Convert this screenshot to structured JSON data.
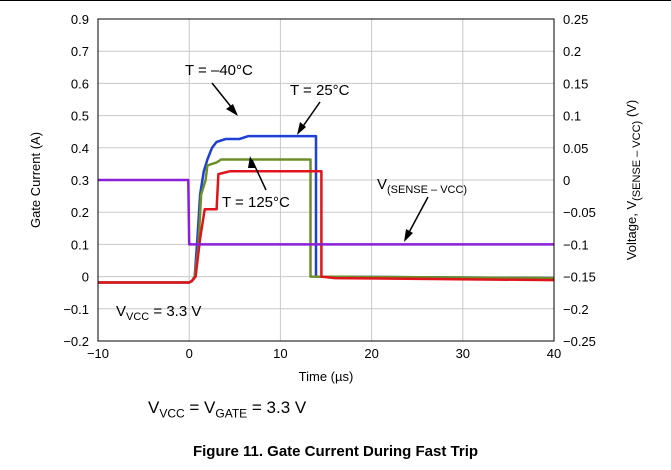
{
  "chart_data": {
    "type": "line",
    "xlabel": "Time (µs)",
    "ylabel_left": "Gate Current (A)",
    "ylabel_right": {
      "main": "Voltage, V",
      "sub": "(SENSE – VCC)",
      "unit": " (V)"
    },
    "xlim": [
      -10,
      40
    ],
    "ylim_left": [
      -0.2,
      0.9
    ],
    "ylim_right": [
      -0.25,
      0.25
    ],
    "grid": true,
    "x_ticks": [
      "−10",
      "0",
      "10",
      "20",
      "30",
      "40"
    ],
    "y_left_ticks": [
      "0.9",
      "0.7",
      "0.6",
      "0.5",
      "0.4",
      "0.3",
      "0.2",
      "0.1",
      "0",
      "−0.1",
      "−0.2"
    ],
    "y_right_ticks": [
      "0.25",
      "0.2",
      "0.15",
      "0.1",
      "0.05",
      "0",
      "−0.05",
      "−0.1",
      "−0.15",
      "−0.2",
      "−0.25"
    ],
    "series": [
      {
        "name": "T = –40°C",
        "axis": "left",
        "color": "#1f3fd6",
        "points": [
          [
            -10,
            0
          ],
          [
            0,
            0
          ],
          [
            0.3,
            0.005
          ],
          [
            0.6,
            0.02
          ],
          [
            0.9,
            0.15
          ],
          [
            1.2,
            0.3
          ],
          [
            1.6,
            0.38
          ],
          [
            2,
            0.42
          ],
          [
            2.5,
            0.46
          ],
          [
            3,
            0.48
          ],
          [
            4,
            0.49
          ],
          [
            5.5,
            0.49
          ],
          [
            6.5,
            0.5
          ],
          [
            13.9,
            0.5
          ],
          [
            13.9,
            0.02
          ],
          [
            40,
            0.015
          ]
        ]
      },
      {
        "name": "T = 25°C",
        "axis": "left",
        "color": "#6b8f2a",
        "points": [
          [
            -10,
            0
          ],
          [
            0,
            0
          ],
          [
            0.3,
            0.005
          ],
          [
            0.6,
            0.02
          ],
          [
            1,
            0.12
          ],
          [
            1.3,
            0.3
          ],
          [
            1.8,
            0.35
          ],
          [
            2,
            0.4
          ],
          [
            3,
            0.41
          ],
          [
            3.5,
            0.42
          ],
          [
            13.3,
            0.42
          ],
          [
            13.3,
            0.02
          ],
          [
            40,
            0.015
          ]
        ]
      },
      {
        "name": "T = 125°C",
        "axis": "left",
        "color": "#e0141c",
        "points": [
          [
            -10,
            0
          ],
          [
            0,
            0
          ],
          [
            0.3,
            0.005
          ],
          [
            0.7,
            0.02
          ],
          [
            1.2,
            0.15
          ],
          [
            1.7,
            0.25
          ],
          [
            3,
            0.25
          ],
          [
            3.2,
            0.37
          ],
          [
            4.5,
            0.38
          ],
          [
            14.5,
            0.38
          ],
          [
            14.5,
            0.02
          ],
          [
            16,
            0.015
          ],
          [
            40,
            0.008
          ]
        ]
      },
      {
        "name": "V(SENSE – VCC)",
        "axis": "right",
        "color": "#8a1fd6",
        "points": [
          [
            -10,
            0
          ],
          [
            -0.1,
            0
          ],
          [
            0,
            -0.1
          ],
          [
            40,
            -0.1
          ]
        ]
      }
    ],
    "annotations": {
      "t_minus40": "T = –40°C",
      "t_25": "T = 25°C",
      "t_125": "T = 125°C",
      "vsense_main": "V",
      "vsense_sub": "(SENSE – VCC)",
      "vvcc_main": "V",
      "vvcc_sub": "VCC",
      "vvcc_rest": " = 3.3 V"
    }
  },
  "footnote": {
    "a": "V",
    "a_sub": "VCC",
    "b": " = V",
    "b_sub": "GATE",
    "c": " = 3.3 V"
  },
  "caption": "Figure 11. Gate Current During Fast Trip"
}
